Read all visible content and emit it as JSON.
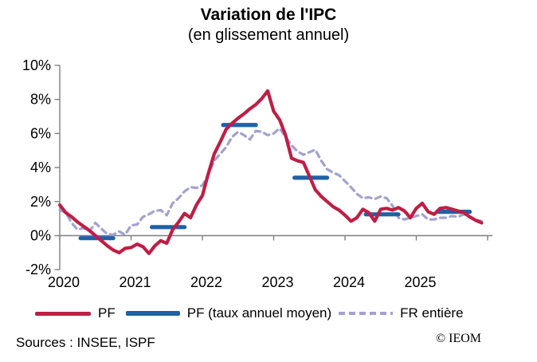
{
  "title": "Variation de l'IPC",
  "subtitle": "(en glissement annuel)",
  "footer": {
    "sources": "Sources : INSEE, ISPF",
    "credit": "© IEOM"
  },
  "legend": [
    {
      "label": "PF",
      "style": "solid",
      "color": "#BF1E45"
    },
    {
      "label": "PF (taux annuel moyen)",
      "style": "solid",
      "color": "#2061A7"
    },
    {
      "label": "FR entière",
      "style": "dashed",
      "color": "#A2A2D0"
    }
  ],
  "chart_data": {
    "type": "line",
    "title": "Variation de l'IPC (en glissement annuel)",
    "x_unit": "month",
    "x_domain": [
      "2020-01",
      "2025-12"
    ],
    "x_tick_labels": [
      "2020",
      "2021",
      "2022",
      "2023",
      "2024",
      "2025"
    ],
    "ylim": [
      -2,
      10
    ],
    "y_ticks": [
      10,
      8,
      6,
      4,
      2,
      0,
      -2
    ],
    "y_tick_labels": [
      "10%",
      "8%",
      "6%",
      "4%",
      "2%",
      "0%",
      "-2%"
    ],
    "grid": false,
    "legend_position": "bottom",
    "axis_color": "#7F7F7F",
    "series": [
      {
        "id": "fr",
        "name": "FR entière",
        "render": "dashed-line",
        "color": "#A2A2D0",
        "values": [
          1.5,
          1.35,
          0.75,
          0.35,
          0.45,
          0.25,
          0.75,
          0.4,
          0.1,
          0.05,
          0.25,
          0.05,
          0.6,
          0.65,
          1.1,
          1.25,
          1.45,
          1.5,
          1.2,
          1.9,
          2.2,
          2.6,
          2.85,
          2.8,
          2.95,
          3.6,
          4.4,
          4.8,
          5.2,
          5.8,
          6.1,
          5.9,
          5.65,
          6.15,
          6.1,
          5.9,
          6.0,
          6.3,
          5.8,
          5.3,
          4.95,
          4.75,
          4.9,
          5.05,
          4.4,
          3.9,
          3.7,
          3.55,
          3.2,
          2.85,
          2.45,
          2.2,
          2.25,
          2.15,
          2.3,
          2.2,
          1.75,
          1.05,
          0.95,
          1.05,
          1.15,
          1.25,
          0.95,
          0.95,
          1.05,
          1.05,
          1.15,
          1.1,
          1.25,
          1.1,
          0.95,
          0.85
        ]
      },
      {
        "id": "pf_avg",
        "name": "PF (taux annuel moyen)",
        "render": "year-segments",
        "color": "#2061A7",
        "years": [
          "2020",
          "2021",
          "2022",
          "2023",
          "2024",
          "2025"
        ],
        "values": [
          -0.15,
          0.5,
          6.5,
          3.4,
          1.25,
          1.4
        ]
      },
      {
        "id": "pf",
        "name": "PF",
        "render": "line",
        "color": "#BF1E45",
        "values": [
          1.8,
          1.35,
          1.1,
          0.8,
          0.55,
          0.3,
          0.0,
          -0.3,
          -0.6,
          -0.85,
          -1.0,
          -0.75,
          -0.7,
          -0.5,
          -0.65,
          -1.05,
          -0.6,
          -0.3,
          -0.45,
          0.35,
          0.8,
          1.3,
          1.05,
          1.8,
          2.35,
          3.65,
          4.8,
          5.5,
          6.25,
          6.6,
          6.9,
          7.15,
          7.45,
          7.7,
          8.05,
          8.5,
          7.3,
          6.8,
          5.9,
          4.55,
          4.4,
          4.3,
          3.5,
          2.7,
          2.3,
          2.0,
          1.7,
          1.5,
          1.2,
          0.85,
          1.05,
          1.55,
          1.35,
          0.85,
          1.55,
          1.6,
          1.5,
          1.65,
          1.45,
          1.05,
          1.6,
          1.9,
          1.4,
          1.25,
          1.6,
          1.65,
          1.55,
          1.45,
          1.35,
          1.1,
          0.9,
          0.75
        ]
      }
    ]
  }
}
